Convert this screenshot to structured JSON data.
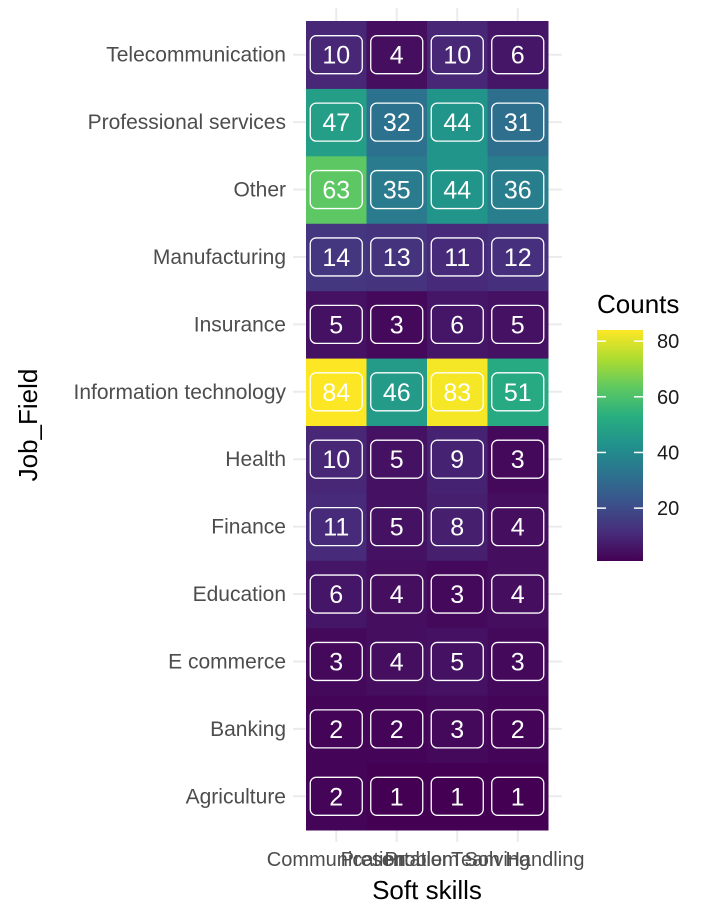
{
  "chart_data": {
    "type": "heatmap",
    "xlabel": "Soft skills",
    "ylabel": "Job_Field",
    "x_categories": [
      "Communication",
      "Presentation",
      "Problem Solving",
      "Team Handling"
    ],
    "y_categories": [
      "Agriculture",
      "Banking",
      "E commerce",
      "Education",
      "Finance",
      "Health",
      "Information technology",
      "Insurance",
      "Manufacturing",
      "Other",
      "Professional services",
      "Telecommunication"
    ],
    "values": [
      [
        2,
        1,
        1,
        1
      ],
      [
        2,
        2,
        3,
        2
      ],
      [
        3,
        4,
        5,
        3
      ],
      [
        6,
        4,
        3,
        4
      ],
      [
        11,
        5,
        8,
        4
      ],
      [
        10,
        5,
        9,
        3
      ],
      [
        84,
        46,
        83,
        51
      ],
      [
        5,
        3,
        6,
        5
      ],
      [
        14,
        13,
        11,
        12
      ],
      [
        63,
        35,
        44,
        36
      ],
      [
        47,
        32,
        44,
        31
      ],
      [
        10,
        4,
        10,
        6
      ]
    ],
    "legend": {
      "title": "Counts",
      "ticks": [
        20,
        40,
        60,
        80
      ],
      "range": [
        1,
        84
      ],
      "colormap": "viridis",
      "placement": "right"
    },
    "grid": true
  }
}
